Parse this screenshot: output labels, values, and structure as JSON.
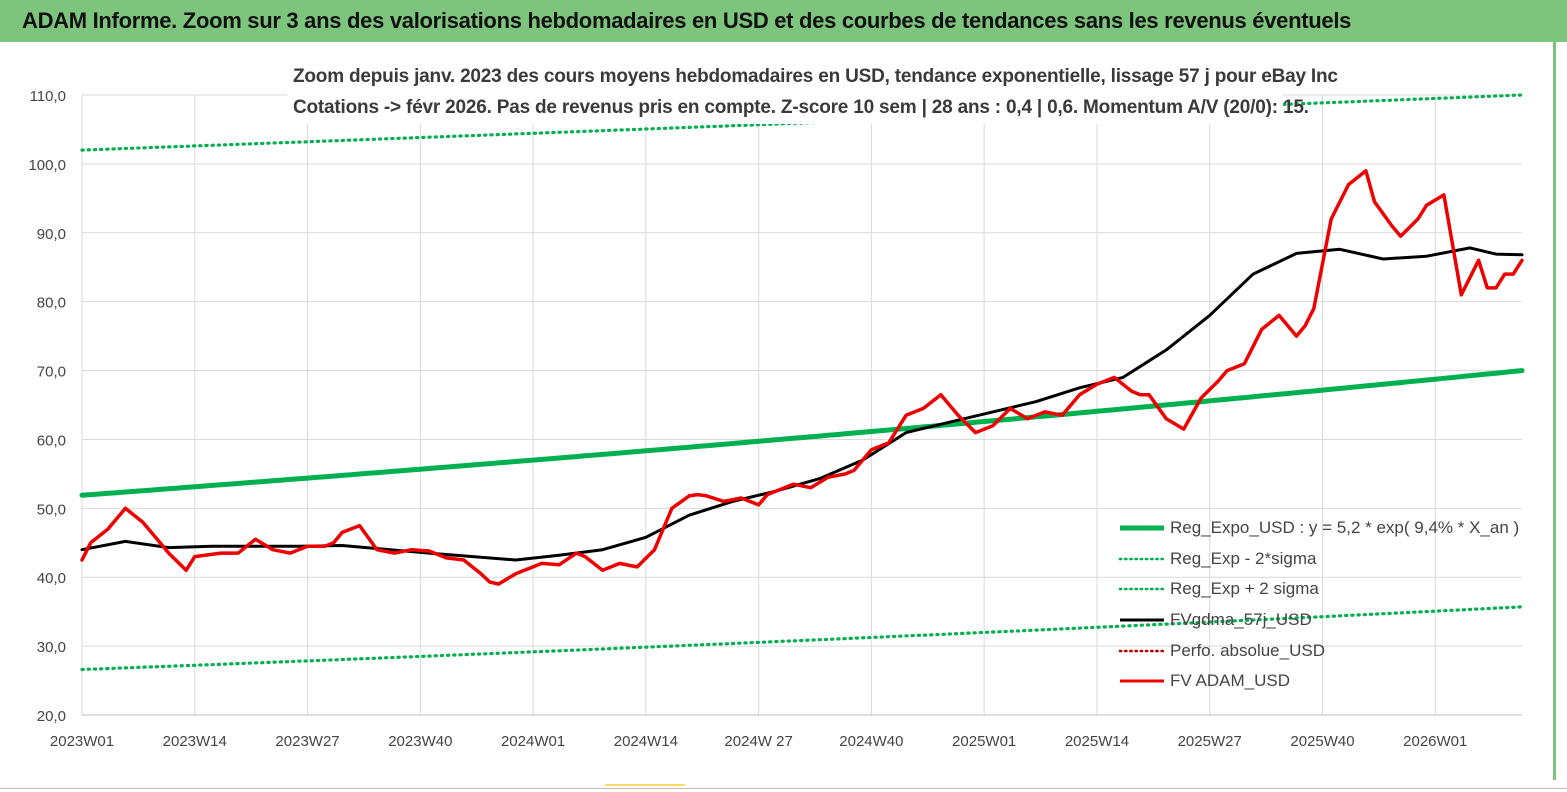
{
  "header": {
    "title": "ADAM Informe. Zoom sur 3 ans des valorisations hebdomadaires en USD et des courbes de tendances sans les revenus éventuels"
  },
  "colors": {
    "header_bg": "#7dc47d",
    "reg_expo": "#00b050",
    "sigma": "#00b050",
    "fv_gdma": "#000000",
    "perfo": "#c00000",
    "fv_adam": "#ee0000",
    "grid": "#d9d9d9"
  },
  "chart_data": {
    "type": "line",
    "title_lines": [
      "Zoom depuis janv. 2023 des cours moyens hebdomadaires en USD, tendance exponentielle, lissage 57 j pour eBay Inc",
      "Cotations -> févr 2026.  Pas de revenus pris en compte. Z-score 10 sem  | 28 ans : 0,4 | 0,6. Momentum A/V (20/0): 15."
    ],
    "ylim": [
      20,
      110
    ],
    "y_ticks": [
      "110,0",
      "100,0",
      "90,0",
      "80,0",
      "70,0",
      "60,0",
      "50,0",
      "40,0",
      "30,0",
      "20,0"
    ],
    "x_ticks": [
      "2023W01",
      "2023W14",
      "2023W27",
      "2023W40",
      "2024W01",
      "2024W14",
      "2024W 27",
      "2024W40",
      "2025W01",
      "2025W14",
      "2025W27",
      "2025W40",
      "2026W01"
    ],
    "week_count": 167,
    "grid": true,
    "legend_position": "bottom-right",
    "legend": [
      {
        "label": "Reg_Expo_USD : y = 5,2 * exp( 9,4% *  X_an )",
        "style": "solid-thick",
        "color": "#00b050"
      },
      {
        "label": "Reg_Exp - 2*sigma",
        "style": "dotted",
        "color": "#00b050"
      },
      {
        "label": "Reg_Exp + 2 sigma",
        "style": "dotted",
        "color": "#00b050"
      },
      {
        "label": "FVgdma_57j_USD",
        "style": "solid",
        "color": "#000000"
      },
      {
        "label": "Perfo. absolue_USD",
        "style": "dotted",
        "color": "#c00000"
      },
      {
        "label": "FV ADAM_USD",
        "style": "solid",
        "color": "#ee0000"
      }
    ],
    "series": [
      {
        "name": "Reg_Expo_USD : y = 5,2 * exp( 9,4% *  X_an )",
        "key": "reg_expo",
        "x": [
          0,
          166
        ],
        "values": [
          51.9,
          70.0
        ],
        "interp": "exp"
      },
      {
        "name": "Reg_Exp - 2*sigma",
        "key": "reg_lower",
        "x": [
          0,
          166
        ],
        "values": [
          26.6,
          35.7
        ],
        "interp": "exp"
      },
      {
        "name": "Reg_Exp + 2 sigma",
        "key": "reg_upper",
        "x": [
          0,
          166
        ],
        "values": [
          102.0,
          110.0
        ],
        "interp": "exp",
        "ymax_clip": 110
      },
      {
        "name": "FVgdma_57j_USD",
        "key": "fv_gdma",
        "x": [
          0,
          5,
          10,
          15,
          20,
          25,
          30,
          40,
          50,
          55,
          60,
          65,
          70,
          75,
          80,
          85,
          90,
          95,
          100,
          105,
          110,
          115,
          120,
          125,
          130,
          135,
          140,
          145,
          150,
          155,
          160,
          163,
          166
        ],
        "values": [
          44.0,
          45.2,
          44.3,
          44.5,
          44.5,
          44.5,
          44.6,
          43.5,
          42.5,
          43.2,
          44.0,
          45.8,
          49.0,
          51.0,
          52.5,
          54.3,
          57.0,
          61.0,
          62.5,
          64.0,
          65.5,
          67.5,
          69.0,
          73.0,
          78.0,
          84.0,
          87.0,
          87.6,
          86.2,
          86.6,
          87.8,
          86.9,
          86.8
        ]
      },
      {
        "name": "FV ADAM_USD",
        "key": "fv_adam",
        "x": [
          0,
          1,
          3,
          5,
          7,
          9,
          10,
          12,
          13,
          16,
          18,
          20,
          22,
          24,
          26,
          28,
          29,
          30,
          32,
          34,
          36,
          38,
          40,
          42,
          44,
          46,
          47,
          48,
          50,
          53,
          55,
          57,
          58,
          60,
          62,
          64,
          66,
          68,
          70,
          71,
          72,
          74,
          76,
          78,
          79,
          82,
          84,
          86,
          88,
          89,
          91,
          93,
          95,
          97,
          99,
          101,
          103,
          105,
          107,
          109,
          111,
          113,
          115,
          117,
          119,
          121,
          122,
          123,
          125,
          127,
          129,
          131,
          132,
          134,
          136,
          138,
          140,
          141,
          142,
          144,
          146,
          148,
          149,
          151,
          152,
          154,
          155,
          157,
          159,
          161,
          162,
          163,
          164,
          165,
          166
        ],
        "values": [
          42.5,
          45.0,
          47.0,
          50.0,
          48.0,
          45.0,
          43.5,
          41.0,
          43.0,
          43.5,
          43.5,
          45.5,
          44.0,
          43.5,
          44.5,
          44.5,
          45.0,
          46.5,
          47.5,
          44.0,
          43.5,
          44.0,
          43.8,
          42.8,
          42.5,
          40.5,
          39.3,
          39.0,
          40.5,
          42.0,
          41.8,
          43.5,
          43.0,
          41.0,
          42.0,
          41.5,
          44.0,
          50.0,
          51.8,
          52.0,
          51.8,
          51.0,
          51.5,
          50.5,
          52.0,
          53.5,
          53.0,
          54.5,
          55.0,
          55.5,
          58.5,
          59.5,
          63.5,
          64.5,
          66.5,
          63.5,
          61.0,
          62.0,
          64.5,
          63.0,
          64.0,
          63.5,
          66.5,
          68.0,
          69.0,
          67.0,
          66.5,
          66.5,
          63.0,
          61.5,
          66.0,
          68.5,
          70.0,
          71.0,
          76.0,
          78.0,
          75.0,
          76.5,
          79.0,
          92.0,
          97.0,
          99.0,
          94.5,
          91.0,
          89.5,
          92.0,
          94.0,
          95.5,
          81.0,
          86.0,
          82.0,
          82.0,
          84.0,
          84.0,
          86.0
        ]
      },
      {
        "name": "Perfo. absolue_USD",
        "key": "perfo",
        "x": [],
        "values": []
      }
    ]
  }
}
